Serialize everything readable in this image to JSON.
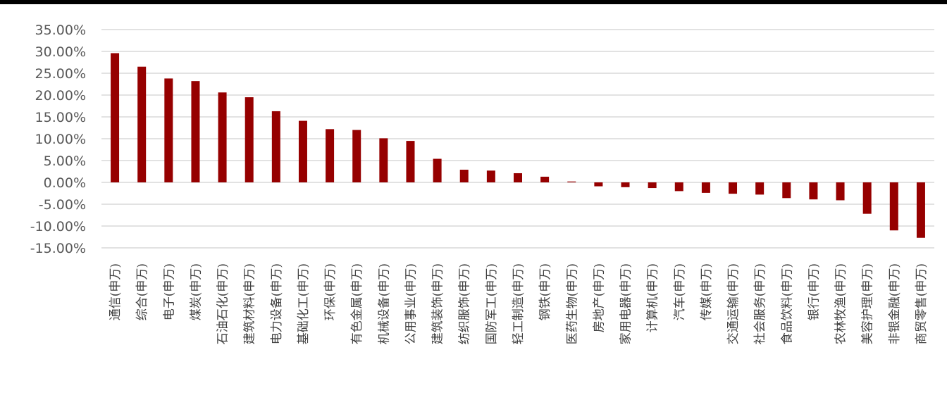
{
  "chart_data": {
    "type": "bar",
    "orientation": "vertical",
    "color": "#960000",
    "ylim": [
      -15,
      35
    ],
    "yticks": [
      35,
      30,
      25,
      20,
      15,
      10,
      5,
      0,
      -5,
      -10,
      -15
    ],
    "ytick_labels": [
      "35.00%",
      "30.00%",
      "25.00%",
      "20.00%",
      "15.00%",
      "10.00%",
      "5.00%",
      "0.00%",
      "-5.00%",
      "-10.00%",
      "-15.00%"
    ],
    "grid": true,
    "legend": false,
    "categories": [
      "通信(申万)",
      "综合(申万)",
      "电子(申万)",
      "煤炭(申万)",
      "石油石化(申万)",
      "建筑材料(申万)",
      "电力设备(申万)",
      "基础化工(申万)",
      "环保(申万)",
      "有色金属(申万)",
      "机械设备(申万)",
      "公用事业(申万)",
      "建筑装饰(申万)",
      "纺织服饰(申万)",
      "国防军工(申万)",
      "轻工制造(申万)",
      "钢铁(申万)",
      "医药生物(申万)",
      "房地产(申万)",
      "家用电器(申万)",
      "计算机(申万)",
      "汽车(申万)",
      "传媒(申万)",
      "交通运输(申万)",
      "社会服务(申万)",
      "食品饮料(申万)",
      "银行(申万)",
      "农林牧渔(申万)",
      "美容护理(申万)",
      "非银金融(申万)",
      "商贸零售(申万)"
    ],
    "values": [
      29.6,
      26.5,
      23.8,
      23.2,
      20.6,
      19.5,
      16.3,
      14.1,
      12.2,
      12.0,
      10.1,
      9.5,
      5.4,
      2.9,
      2.7,
      2.1,
      1.3,
      0.2,
      -0.9,
      -1.1,
      -1.3,
      -2.0,
      -2.4,
      -2.6,
      -2.8,
      -3.6,
      -3.9,
      -4.1,
      -7.2,
      -11.0,
      -12.7
    ]
  }
}
